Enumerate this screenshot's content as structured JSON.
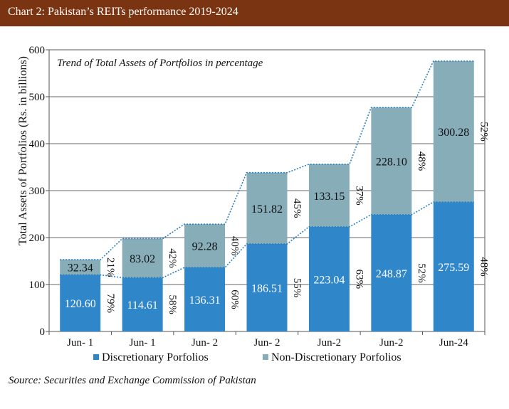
{
  "header": {
    "title": "Chart 2: Pakistan’s REITs performance 2019-2024"
  },
  "source": "Source: Securities and Exchange Commission of Pakistan",
  "colors": {
    "header_bg": "#7a3412",
    "discretionary": "#2f86c8",
    "non_discretionary": "#87adb9",
    "trend_line": "#2a7fbf"
  },
  "chart_data": {
    "type": "bar",
    "stacked": true,
    "annotation": "Trend of Total Assets of Portfolios in percentage",
    "ylabel": "Total Assets  of Portfolios (Rs. in billions)",
    "xlabel": "",
    "ylim": [
      0,
      600
    ],
    "yticks": [
      0,
      100,
      200,
      300,
      400,
      500,
      600
    ],
    "grid": true,
    "legend_position": "bottom",
    "categories": [
      "Jun- 1",
      "Jun- 1",
      "Jun- 2",
      "Jun- 2",
      "Jun-2",
      "Jun-2",
      "Jun-24"
    ],
    "series": [
      {
        "name": "Discretionary Porfolios",
        "values": [
          120.6,
          114.61,
          136.31,
          186.51,
          223.04,
          248.87,
          275.59
        ],
        "value_labels": [
          "120.60",
          "114.61",
          "136.31",
          "186.51",
          "223.04",
          "248.87",
          "275.59"
        ],
        "percent_labels": [
          "79%",
          "58%",
          "60%",
          "55%",
          "63%",
          "52%",
          "48%"
        ]
      },
      {
        "name": "Non-Discretionary Porfolios",
        "values": [
          32.34,
          83.02,
          92.28,
          151.82,
          133.15,
          228.1,
          300.28
        ],
        "value_labels": [
          "32.34",
          "83.02",
          "92.28",
          "151.82",
          "133.15",
          "228.10",
          "300.28"
        ],
        "percent_labels": [
          "21%",
          "42%",
          "40%",
          "45%",
          "37%",
          "48%",
          "52%"
        ]
      }
    ]
  }
}
